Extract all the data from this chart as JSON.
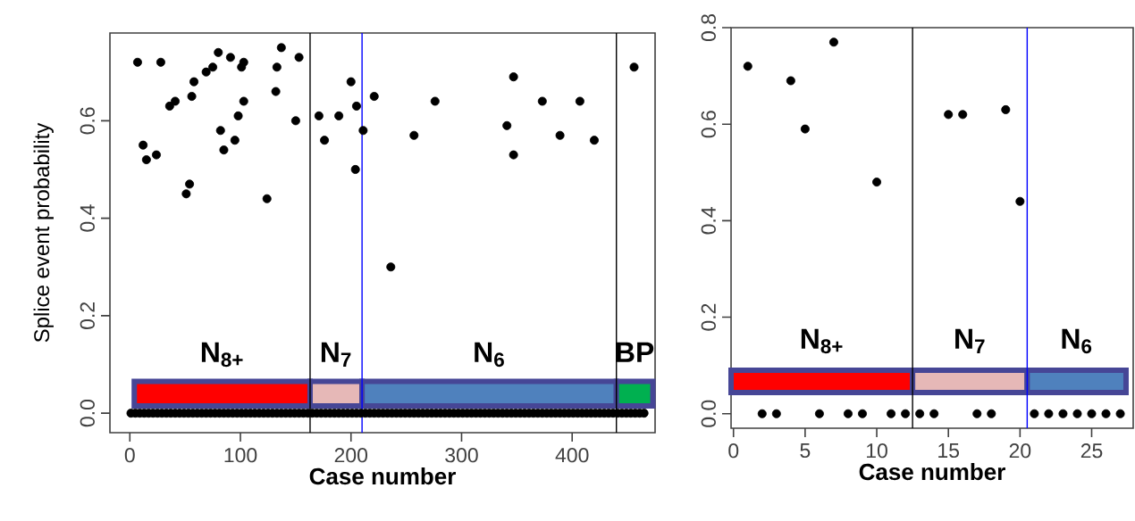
{
  "chart_data": [
    {
      "type": "scatter",
      "xlabel": "Case number",
      "ylabel": "Splice event  probability",
      "marker": "circle",
      "xlim": [
        -18,
        475
      ],
      "ylim": [
        -0.04,
        0.78
      ],
      "xticks": [
        0,
        100,
        200,
        300,
        400
      ],
      "yticks": [
        {
          "value": 0,
          "label": "0.0"
        },
        {
          "value": 0.2,
          "label": "0.2"
        },
        {
          "value": 0.4,
          "label": "0.4"
        },
        {
          "value": 0.6,
          "label": "0.6"
        }
      ],
      "series": [
        {
          "color": "#000000",
          "x": [
            7,
            12,
            15,
            24,
            28,
            36,
            41,
            51,
            54,
            56,
            58,
            69,
            75,
            80,
            82,
            85,
            91,
            95,
            98,
            101,
            103,
            103,
            124,
            132,
            133,
            137,
            150,
            153,
            171,
            176,
            189,
            200,
            204,
            205,
            211,
            221,
            236,
            257,
            276,
            341,
            347,
            347,
            373,
            389,
            407,
            420,
            456
          ],
          "values": [
            0.72,
            0.55,
            0.52,
            0.53,
            0.72,
            0.63,
            0.64,
            0.45,
            0.47,
            0.65,
            0.68,
            0.7,
            0.71,
            0.74,
            0.58,
            0.54,
            0.73,
            0.56,
            0.61,
            0.71,
            0.72,
            0.64,
            0.44,
            0.66,
            0.71,
            0.75,
            0.6,
            0.73,
            0.61,
            0.56,
            0.61,
            0.68,
            0.5,
            0.63,
            0.58,
            0.65,
            0.3,
            0.57,
            0.64,
            0.59,
            0.69,
            0.53,
            0.64,
            0.57,
            0.64,
            0.56,
            0.71
          ]
        },
        {
          "color": "#000000",
          "x": [
            1,
            5,
            9,
            13,
            17,
            21,
            25,
            29,
            33,
            37,
            41,
            45,
            49,
            53,
            57,
            61,
            65,
            69,
            73,
            77,
            81,
            85,
            89,
            93,
            97,
            101,
            105,
            109,
            113,
            117,
            121,
            125,
            129,
            133,
            137,
            141,
            145,
            149,
            153,
            157,
            161,
            165,
            169,
            173,
            177,
            181,
            185,
            189,
            193,
            197,
            201,
            205,
            209,
            213,
            217,
            221,
            225,
            229,
            233,
            237,
            241,
            245,
            249,
            253,
            257,
            261,
            265,
            269,
            273,
            277,
            281,
            285,
            289,
            293,
            297,
            301,
            305,
            309,
            313,
            317,
            321,
            325,
            329,
            333,
            337,
            341,
            345,
            349,
            353,
            357,
            361,
            365,
            369,
            373,
            377,
            381,
            385,
            389,
            393,
            397,
            401,
            405,
            409,
            413,
            417,
            421,
            425,
            429,
            433,
            437,
            441,
            445,
            449,
            453,
            457,
            461,
            465
          ],
          "values": [
            0,
            0,
            0,
            0,
            0,
            0,
            0,
            0,
            0,
            0,
            0,
            0,
            0,
            0,
            0,
            0,
            0,
            0,
            0,
            0,
            0,
            0,
            0,
            0,
            0,
            0,
            0,
            0,
            0,
            0,
            0,
            0,
            0,
            0,
            0,
            0,
            0,
            0,
            0,
            0,
            0,
            0,
            0,
            0,
            0,
            0,
            0,
            0,
            0,
            0,
            0,
            0,
            0,
            0,
            0,
            0,
            0,
            0,
            0,
            0,
            0,
            0,
            0,
            0,
            0,
            0,
            0,
            0,
            0,
            0,
            0,
            0,
            0,
            0,
            0,
            0,
            0,
            0,
            0,
            0,
            0,
            0,
            0,
            0,
            0,
            0,
            0,
            0,
            0,
            0,
            0,
            0,
            0,
            0,
            0,
            0,
            0,
            0,
            0,
            0,
            0,
            0,
            0,
            0,
            0,
            0,
            0,
            0,
            0,
            0,
            0,
            0,
            0,
            0,
            0,
            0,
            0
          ]
        }
      ],
      "ref_lines": [
        {
          "axis": "x",
          "value": 163,
          "color": "#000000"
        },
        {
          "axis": "x",
          "value": 210,
          "color": "#0000ff"
        },
        {
          "axis": "x",
          "value": 440,
          "color": "#000000"
        }
      ],
      "bands": [
        {
          "axis": "x",
          "from": 4,
          "to": 163,
          "label": "N$_{8+}$",
          "color": "#ff0000"
        },
        {
          "axis": "x",
          "from": 163,
          "to": 210,
          "label": "N$_{7}$",
          "color": "#e6b8b7"
        },
        {
          "axis": "x",
          "from": 210,
          "to": 440,
          "label": "N$_{6}$",
          "color": "#4f81bd"
        },
        {
          "axis": "x",
          "from": 440,
          "to": 473,
          "label": "BP",
          "color": "#00b050"
        }
      ]
    },
    {
      "type": "scatter",
      "xlabel": "Case number",
      "marker": "circle",
      "xlim": [
        -0.17,
        27.9
      ],
      "ylim": [
        -0.03,
        0.8
      ],
      "xticks": [
        0,
        5,
        10,
        15,
        20,
        25
      ],
      "yticks": [
        {
          "value": 0,
          "label": "0.0"
        },
        {
          "value": 0.2,
          "label": "0.2"
        },
        {
          "value": 0.4,
          "label": "0.4"
        },
        {
          "value": 0.6,
          "label": "0.6"
        },
        {
          "value": 0.8,
          "label": "0.8"
        }
      ],
      "series": [
        {
          "color": "#000000",
          "x": [
            1,
            2,
            3,
            4,
            5,
            6,
            7,
            8,
            9,
            10,
            11,
            12,
            13,
            14,
            15,
            16,
            17,
            18,
            19,
            20,
            21,
            22,
            23,
            24,
            25,
            26,
            27
          ],
          "values": [
            0.72,
            0,
            0,
            0.69,
            0.59,
            0,
            0.77,
            0,
            0,
            0.48,
            0,
            0,
            0,
            0,
            0.62,
            0.62,
            0,
            0,
            0.63,
            0.44,
            0,
            0,
            0,
            0,
            0,
            0,
            0
          ]
        }
      ],
      "ref_lines": [
        {
          "axis": "x",
          "value": 12.5,
          "color": "#000000"
        },
        {
          "axis": "x",
          "value": 20.5,
          "color": "#0000ff"
        }
      ],
      "bands": [
        {
          "axis": "x",
          "from": -0.17,
          "to": 12.5,
          "label": "N$_{8+}$",
          "color": "#ff0000"
        },
        {
          "axis": "x",
          "from": 12.5,
          "to": 20.5,
          "label": "N$_{7}$",
          "color": "#e6b8b7"
        },
        {
          "axis": "x",
          "from": 20.5,
          "to": 27.4,
          "label": "N$_{6}$",
          "color": "#4f81bd"
        }
      ]
    }
  ]
}
